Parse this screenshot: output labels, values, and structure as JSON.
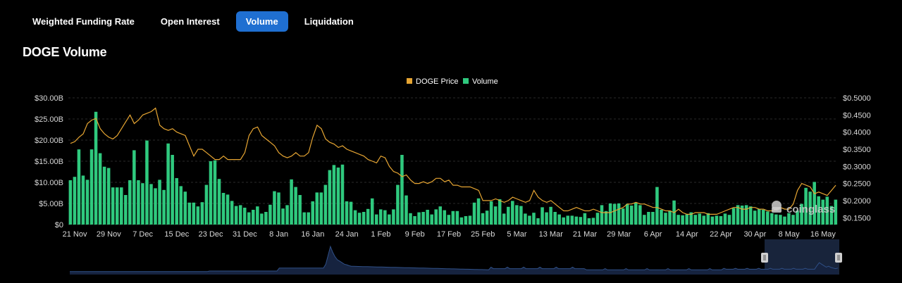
{
  "tabs": [
    {
      "label": "Weighted Funding Rate",
      "active": false
    },
    {
      "label": "Open Interest",
      "active": false
    },
    {
      "label": "Volume",
      "active": true
    },
    {
      "label": "Liquidation",
      "active": false
    }
  ],
  "page_title": "DOGE Volume",
  "watermark": "coinglass",
  "colors": {
    "volume": "#2fc97e",
    "price": "#e6a532",
    "active_tab": "#1f6fd1",
    "navigator_fill": "#16233f",
    "navigator_line": "#2f4f86"
  },
  "chart_data": {
    "type": "bar",
    "legend": [
      "DOGE Price",
      "Volume"
    ],
    "legend_position": "top-center",
    "grid": true,
    "x_tick_labels": [
      "21 Nov",
      "29 Nov",
      "7 Dec",
      "15 Dec",
      "23 Dec",
      "31 Dec",
      "8 Jan",
      "16 Jan",
      "24 Jan",
      "1 Feb",
      "9 Feb",
      "17 Feb",
      "25 Feb",
      "5 Mar",
      "13 Mar",
      "21 Mar",
      "29 Mar",
      "6 Apr",
      "14 Apr",
      "22 Apr",
      "30 Apr",
      "8 May",
      "16 May"
    ],
    "y_left_ticks": [
      "$0",
      "$5.00B",
      "$10.00B",
      "$15.00B",
      "$20.00B",
      "$25.00B",
      "$30.00B"
    ],
    "y_right_ticks": [
      "$0.1500",
      "$0.2000",
      "$0.2500",
      "$0.3000",
      "$0.3500",
      "$0.4000",
      "$0.4500",
      "$0.5000"
    ],
    "y_left_range": [
      0,
      30
    ],
    "y_right_range": [
      0.13,
      0.5
    ],
    "series": [
      {
        "name": "Volume",
        "unit": "$B",
        "values": [
          10.5,
          11.3,
          17.8,
          11.6,
          10.6,
          17.8,
          26.7,
          16.9,
          13.7,
          13.4,
          8.8,
          8.8,
          8.8,
          7.0,
          10.5,
          17.6,
          10.5,
          9.8,
          19.9,
          9.6,
          8.6,
          10.6,
          8.2,
          19.2,
          16.5,
          11.0,
          9.1,
          7.8,
          5.2,
          5.2,
          4.3,
          5.3,
          9.4,
          15.0,
          15.2,
          10.8,
          7.5,
          7.1,
          5.6,
          4.4,
          4.6,
          4.0,
          2.9,
          3.5,
          4.3,
          2.6,
          3.0,
          4.7,
          7.9,
          7.6,
          3.8,
          4.6,
          10.7,
          8.9,
          7.0,
          2.9,
          2.9,
          5.5,
          7.6,
          7.6,
          9.4,
          12.9,
          14.1,
          13.5,
          14.2,
          5.5,
          5.4,
          3.4,
          2.8,
          3.0,
          3.7,
          6.2,
          2.4,
          3.6,
          3.4,
          2.4,
          3.6,
          9.4,
          16.5,
          6.9,
          2.7,
          2.0,
          2.9,
          3.0,
          3.5,
          2.4,
          3.6,
          4.3,
          3.4,
          2.3,
          3.2,
          3.2,
          1.7,
          2.0,
          2.1,
          5.2,
          6.2,
          2.7,
          3.3,
          5.5,
          4.3,
          6.0,
          2.6,
          4.2,
          5.6,
          4.6,
          4.4,
          2.6,
          2.1,
          2.8,
          1.5,
          4.1,
          2.9,
          4.2,
          3.0,
          2.4,
          1.7,
          2.1,
          2.1,
          1.9,
          1.8,
          2.7,
          1.5,
          1.6,
          2.8,
          4.6,
          3.2,
          5.0,
          4.9,
          5.0,
          3.8,
          4.9,
          4.5,
          5.2,
          4.6,
          2.3,
          3.0,
          3.0,
          8.9,
          3.5,
          2.8,
          3.3,
          5.7,
          2.3,
          2.2,
          2.4,
          2.9,
          2.3,
          2.6,
          2.1,
          2.7,
          1.9,
          2.1,
          2.0,
          2.6,
          2.3,
          3.9,
          4.6,
          4.5,
          4.6,
          4.3,
          3.3,
          3.7,
          3.5,
          3.1,
          2.7,
          2.4,
          2.3,
          1.9,
          2.7,
          2.3,
          3.3,
          4.9,
          8.7,
          7.8,
          10.1,
          6.7,
          5.9,
          6.6,
          4.4,
          5.9
        ]
      },
      {
        "name": "DOGE Price",
        "unit": "$",
        "values": [
          0.367,
          0.372,
          0.385,
          0.395,
          0.425,
          0.435,
          0.44,
          0.41,
          0.395,
          0.385,
          0.38,
          0.39,
          0.41,
          0.43,
          0.45,
          0.425,
          0.435,
          0.45,
          0.455,
          0.46,
          0.47,
          0.42,
          0.41,
          0.405,
          0.41,
          0.4,
          0.395,
          0.39,
          0.36,
          0.33,
          0.35,
          0.35,
          0.34,
          0.33,
          0.32,
          0.32,
          0.33,
          0.32,
          0.32,
          0.32,
          0.32,
          0.34,
          0.39,
          0.41,
          0.415,
          0.39,
          0.38,
          0.37,
          0.36,
          0.34,
          0.33,
          0.325,
          0.33,
          0.34,
          0.33,
          0.33,
          0.34,
          0.385,
          0.42,
          0.41,
          0.38,
          0.37,
          0.365,
          0.355,
          0.36,
          0.35,
          0.345,
          0.34,
          0.335,
          0.33,
          0.32,
          0.315,
          0.31,
          0.33,
          0.325,
          0.3,
          0.285,
          0.28,
          0.27,
          0.275,
          0.26,
          0.25,
          0.25,
          0.255,
          0.25,
          0.255,
          0.265,
          0.265,
          0.255,
          0.26,
          0.245,
          0.245,
          0.24,
          0.24,
          0.24,
          0.235,
          0.23,
          0.2,
          0.2,
          0.2,
          0.205,
          0.2,
          0.195,
          0.2,
          0.21,
          0.205,
          0.2,
          0.195,
          0.2,
          0.23,
          0.21,
          0.2,
          0.195,
          0.2,
          0.19,
          0.18,
          0.17,
          0.17,
          0.175,
          0.18,
          0.175,
          0.17,
          0.17,
          0.175,
          0.17,
          0.165,
          0.165,
          0.165,
          0.17,
          0.175,
          0.18,
          0.19,
          0.19,
          0.195,
          0.19,
          0.19,
          0.185,
          0.18,
          0.18,
          0.175,
          0.17,
          0.17,
          0.165,
          0.175,
          0.165,
          0.16,
          0.16,
          0.165,
          0.165,
          0.165,
          0.16,
          0.16,
          0.16,
          0.165,
          0.17,
          0.175,
          0.18,
          0.18,
          0.175,
          0.175,
          0.18,
          0.18,
          0.175,
          0.175,
          0.17,
          0.17,
          0.175,
          0.18,
          0.175,
          0.175,
          0.19,
          0.23,
          0.25,
          0.245,
          0.24,
          0.22,
          0.225,
          0.22,
          0.215,
          0.23,
          0.245
        ]
      }
    ]
  }
}
